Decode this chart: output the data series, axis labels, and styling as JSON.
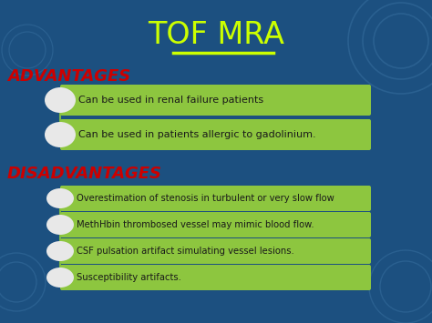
{
  "title": "TOF MRA",
  "title_color": "#ccff00",
  "title_underline_color": "#ccff00",
  "bg_color": "#1c5080",
  "advantages_label": "ADVANTAGES",
  "disadvantages_label": "DISADVANTAGES",
  "section_label_color": "#cc0000",
  "box_color": "#8dc63f",
  "box_text_color": "#1a1a1a",
  "bullet_circle_color": "#e8e8e8",
  "deco_circle_color": "#2a6090",
  "advantages": [
    "Can be used in renal failure patients",
    "Can be used in patients allergic to gadolinium."
  ],
  "disadvantages": [
    "Overestimation of stenosis in turbulent or very slow flow",
    "MethHbin thrombosed vessel may mimic blood flow.",
    "CSF pulsation artifact simulating vessel lesions.",
    "Susceptibility artifacts."
  ]
}
